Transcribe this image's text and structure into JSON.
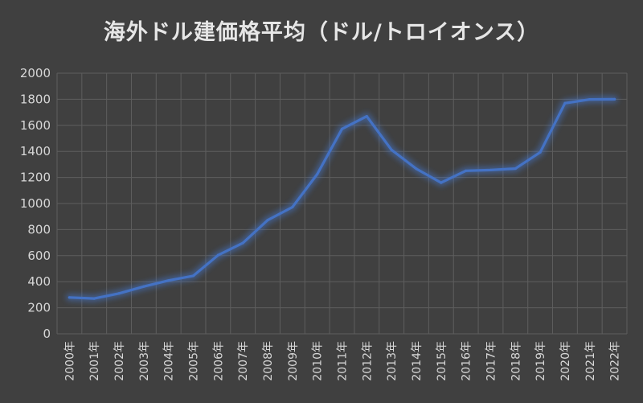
{
  "chart_data": {
    "type": "line",
    "title": "海外ドル建価格平均（ドル/トロイオンス）",
    "xlabel": "",
    "ylabel": "",
    "ylim": [
      0,
      2000
    ],
    "yticks": [
      0,
      200,
      400,
      600,
      800,
      1000,
      1200,
      1400,
      1600,
      1800,
      2000
    ],
    "grid": true,
    "categories": [
      "2000年",
      "2001年",
      "2002年",
      "2003年",
      "2004年",
      "2005年",
      "2006年",
      "2007年",
      "2008年",
      "2009年",
      "2010年",
      "2011年",
      "2012年",
      "2013年",
      "2014年",
      "2015年",
      "2016年",
      "2017年",
      "2018年",
      "2019年",
      "2020年",
      "2021年",
      "2022年"
    ],
    "series": [
      {
        "color": "#4472c4",
        "values": [
          279,
          271,
          310,
          363,
          409,
          445,
          604,
          697,
          872,
          972,
          1225,
          1572,
          1669,
          1411,
          1266,
          1160,
          1251,
          1257,
          1268,
          1393,
          1770,
          1799,
          1800
        ]
      }
    ]
  }
}
